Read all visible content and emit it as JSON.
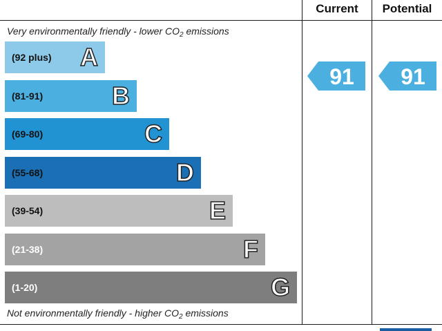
{
  "chart_data": {
    "type": "bar",
    "headers": {
      "current": "Current",
      "potential": "Potential"
    },
    "top_caption": {
      "text": "Very environmentally friendly - lower C",
      "sub_o": "O",
      "sub_2": "2",
      "tail": " emissions"
    },
    "bottom_caption": {
      "text": "Not environmentally friendly - higher C",
      "sub_o": "O",
      "sub_2": "2",
      "tail": " emissions"
    },
    "bands": [
      {
        "letter": "A",
        "range": "(92 plus)",
        "min": 92,
        "color": "#8dcaea",
        "text_color": "#111111"
      },
      {
        "letter": "B",
        "range": "(81-91)",
        "min": 81,
        "color": "#4bb0e0",
        "text_color": "#111111"
      },
      {
        "letter": "C",
        "range": "(69-80)",
        "min": 69,
        "color": "#2293d2",
        "text_color": "#111111"
      },
      {
        "letter": "D",
        "range": "(55-68)",
        "min": 55,
        "color": "#1a6fb5",
        "text_color": "#111111"
      },
      {
        "letter": "E",
        "range": "(39-54)",
        "min": 39,
        "color": "#bdbdbd",
        "text_color": "#111111"
      },
      {
        "letter": "F",
        "range": "(21-38)",
        "min": 21,
        "color": "#a3a3a3",
        "text_color": "#ffffff"
      },
      {
        "letter": "G",
        "range": "(1-20)",
        "min": 1,
        "color": "#7e7e7e",
        "text_color": "#ffffff"
      }
    ],
    "current": {
      "value": 91,
      "color": "#4bb0e0"
    },
    "potential": {
      "value": 91,
      "color": "#4bb0e0"
    }
  }
}
